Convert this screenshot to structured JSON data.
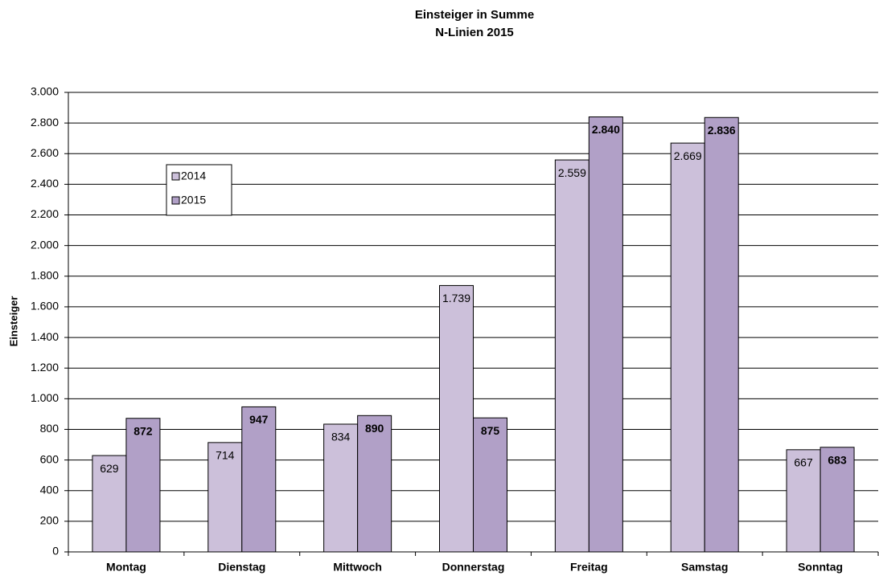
{
  "chart_data": {
    "type": "bar",
    "title": "Einsteiger in Summe",
    "subtitle": "N-Linien 2015",
    "y_label": "Einsteiger",
    "categories": [
      "Montag",
      "Dienstag",
      "Mittwoch",
      "Donnerstag",
      "Freitag",
      "Samstag",
      "Sonntag"
    ],
    "series": [
      {
        "name": "2014",
        "color": "#ccc0da",
        "values": [
          629,
          714,
          834,
          1739,
          2559,
          2669,
          667
        ],
        "value_labels": [
          "629",
          "714",
          "834",
          "1.739",
          "2.559",
          "2.669",
          "667"
        ]
      },
      {
        "name": "2015",
        "color": "#b1a0c7",
        "values": [
          872,
          947,
          890,
          875,
          2840,
          2836,
          683
        ],
        "value_labels": [
          "872",
          "947",
          "890",
          "875",
          "2.840",
          "2.836",
          "683"
        ]
      }
    ],
    "ylim": [
      0,
      3000
    ],
    "yticks": [
      0,
      200,
      400,
      600,
      800,
      {
        "value": 1000,
        "label": "1.000"
      },
      {
        "value": 1200,
        "label": "1.200"
      },
      {
        "value": 1400,
        "label": "1.400"
      },
      {
        "value": 1600,
        "label": "1.600"
      },
      {
        "value": 1800,
        "label": "1.800"
      },
      {
        "value": 2000,
        "label": "2.000"
      },
      {
        "value": 2200,
        "label": "2.200"
      },
      {
        "value": 2400,
        "label": "2.400"
      },
      {
        "value": 2600,
        "label": "2.600"
      },
      {
        "value": 2800,
        "label": "2.800"
      },
      {
        "value": 3000,
        "label": "3.000"
      }
    ],
    "grid": true
  }
}
